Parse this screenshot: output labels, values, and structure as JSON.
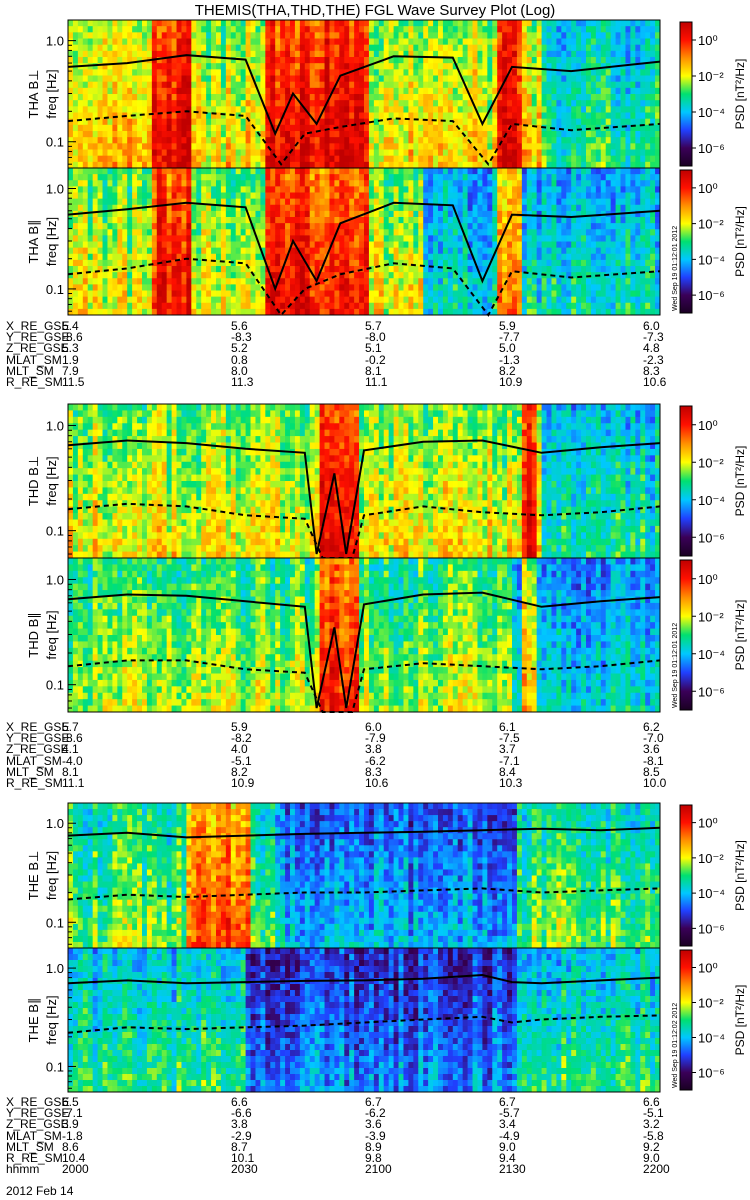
{
  "title": "THEMIS(THA,THD,THE) FGL Wave Survey Plot (Log)",
  "colors": {
    "colorbar_stops": [
      "#1a0022",
      "#3a0058",
      "#2040ff",
      "#00c8ff",
      "#00e070",
      "#ffff00",
      "#ff9000",
      "#ff1000",
      "#c00000"
    ],
    "line": "#000000"
  },
  "chart_data": [
    {
      "type": "heatmap",
      "panel": "THA B⊥",
      "ylabel": "THA B⊥",
      "ylabel2": "freq [Hz]",
      "yscale": "log",
      "ylim": [
        0.055,
        1.6
      ],
      "yticks": [
        "1.0",
        "0.1"
      ],
      "cbar_label": "PSD [nT²/Hz]",
      "cbar_ticks": [
        "10⁰",
        "10⁻²",
        "10⁻⁴",
        "10⁻⁶"
      ],
      "cbar_range": [
        -7,
        1
      ],
      "solid_line": [
        [
          0,
          0.55
        ],
        [
          0.1,
          0.6
        ],
        [
          0.2,
          0.72
        ],
        [
          0.3,
          0.65
        ],
        [
          0.35,
          0.12
        ],
        [
          0.38,
          0.3
        ],
        [
          0.42,
          0.15
        ],
        [
          0.46,
          0.45
        ],
        [
          0.55,
          0.7
        ],
        [
          0.65,
          0.68
        ],
        [
          0.7,
          0.15
        ],
        [
          0.75,
          0.55
        ],
        [
          0.85,
          0.5
        ],
        [
          1,
          0.62
        ]
      ],
      "dashed_line": [
        [
          0,
          0.16
        ],
        [
          0.1,
          0.18
        ],
        [
          0.2,
          0.2
        ],
        [
          0.3,
          0.18
        ],
        [
          0.36,
          0.06
        ],
        [
          0.4,
          0.12
        ],
        [
          0.46,
          0.14
        ],
        [
          0.55,
          0.17
        ],
        [
          0.65,
          0.16
        ],
        [
          0.71,
          0.06
        ],
        [
          0.75,
          0.15
        ],
        [
          0.85,
          0.13
        ],
        [
          1,
          0.15
        ]
      ]
    },
    {
      "type": "heatmap",
      "panel": "THA B∥",
      "ylabel": "THA B∥",
      "ylabel2": "freq [Hz]",
      "yscale": "log",
      "ylim": [
        0.055,
        1.6
      ],
      "yticks": [
        "1.0",
        "0.1"
      ],
      "cbar_label": "PSD [nT²/Hz]",
      "cbar_ticks": [
        "10⁰",
        "10⁻²",
        "10⁻⁴",
        "10⁻⁶"
      ],
      "cbar_range": [
        -7,
        1
      ],
      "stamp": "Wed Sep 19 01:12:01 2012",
      "solid_line": [
        [
          0,
          0.55
        ],
        [
          0.1,
          0.62
        ],
        [
          0.2,
          0.72
        ],
        [
          0.3,
          0.65
        ],
        [
          0.35,
          0.1
        ],
        [
          0.38,
          0.3
        ],
        [
          0.42,
          0.12
        ],
        [
          0.46,
          0.45
        ],
        [
          0.55,
          0.72
        ],
        [
          0.65,
          0.68
        ],
        [
          0.7,
          0.12
        ],
        [
          0.75,
          0.55
        ],
        [
          0.85,
          0.52
        ],
        [
          1,
          0.6
        ]
      ],
      "dashed_line": [
        [
          0,
          0.14
        ],
        [
          0.1,
          0.16
        ],
        [
          0.2,
          0.2
        ],
        [
          0.3,
          0.18
        ],
        [
          0.36,
          0.05
        ],
        [
          0.4,
          0.1
        ],
        [
          0.46,
          0.14
        ],
        [
          0.55,
          0.18
        ],
        [
          0.65,
          0.16
        ],
        [
          0.71,
          0.05
        ],
        [
          0.75,
          0.15
        ],
        [
          0.85,
          0.13
        ],
        [
          1,
          0.15
        ]
      ]
    },
    {
      "type": "heatmap",
      "panel": "THD B⊥",
      "ylabel": "THD B⊥",
      "ylabel2": "freq [Hz]",
      "yscale": "log",
      "ylim": [
        0.055,
        1.6
      ],
      "yticks": [
        "1.0",
        "0.1"
      ],
      "cbar_label": "PSD [nT²/Hz]",
      "cbar_ticks": [
        "10⁰",
        "10⁻²",
        "10⁻⁴",
        "10⁻⁶"
      ],
      "cbar_range": [
        -7,
        1
      ],
      "solid_line": [
        [
          0,
          0.65
        ],
        [
          0.1,
          0.72
        ],
        [
          0.2,
          0.68
        ],
        [
          0.3,
          0.6
        ],
        [
          0.4,
          0.55
        ],
        [
          0.42,
          0.06
        ],
        [
          0.45,
          0.35
        ],
        [
          0.47,
          0.06
        ],
        [
          0.5,
          0.58
        ],
        [
          0.6,
          0.7
        ],
        [
          0.7,
          0.72
        ],
        [
          0.8,
          0.55
        ],
        [
          0.9,
          0.62
        ],
        [
          1,
          0.68
        ]
      ],
      "dashed_line": [
        [
          0,
          0.16
        ],
        [
          0.1,
          0.18
        ],
        [
          0.2,
          0.17
        ],
        [
          0.3,
          0.14
        ],
        [
          0.4,
          0.13
        ],
        [
          0.43,
          0.05
        ],
        [
          0.48,
          0.05
        ],
        [
          0.5,
          0.14
        ],
        [
          0.6,
          0.17
        ],
        [
          0.7,
          0.15
        ],
        [
          0.8,
          0.14
        ],
        [
          0.9,
          0.15
        ],
        [
          1,
          0.17
        ]
      ]
    },
    {
      "type": "heatmap",
      "panel": "THD B∥",
      "ylabel": "THD B∥",
      "ylabel2": "freq [Hz]",
      "yscale": "log",
      "ylim": [
        0.055,
        1.6
      ],
      "yticks": [
        "1.0",
        "0.1"
      ],
      "cbar_label": "PSD [nT²/Hz]",
      "cbar_ticks": [
        "10⁰",
        "10⁻²",
        "10⁻⁴",
        "10⁻⁶"
      ],
      "cbar_range": [
        -7,
        1
      ],
      "stamp": "Wed Sep 19 01:12:01 2012",
      "solid_line": [
        [
          0,
          0.65
        ],
        [
          0.1,
          0.72
        ],
        [
          0.2,
          0.7
        ],
        [
          0.3,
          0.62
        ],
        [
          0.4,
          0.55
        ],
        [
          0.42,
          0.06
        ],
        [
          0.45,
          0.35
        ],
        [
          0.47,
          0.06
        ],
        [
          0.5,
          0.58
        ],
        [
          0.6,
          0.72
        ],
        [
          0.7,
          0.75
        ],
        [
          0.8,
          0.55
        ],
        [
          0.9,
          0.62
        ],
        [
          1,
          0.68
        ]
      ],
      "dashed_line": [
        [
          0,
          0.15
        ],
        [
          0.1,
          0.17
        ],
        [
          0.2,
          0.17
        ],
        [
          0.3,
          0.14
        ],
        [
          0.4,
          0.13
        ],
        [
          0.43,
          0.05
        ],
        [
          0.48,
          0.05
        ],
        [
          0.5,
          0.14
        ],
        [
          0.6,
          0.16
        ],
        [
          0.7,
          0.15
        ],
        [
          0.8,
          0.14
        ],
        [
          0.9,
          0.15
        ],
        [
          1,
          0.17
        ]
      ]
    },
    {
      "type": "heatmap",
      "panel": "THE B⊥",
      "ylabel": "THE B⊥",
      "ylabel2": "freq [Hz]",
      "yscale": "log",
      "ylim": [
        0.055,
        1.6
      ],
      "yticks": [
        "1.0",
        "0.1"
      ],
      "cbar_label": "PSD [nT²/Hz]",
      "cbar_ticks": [
        "10⁰",
        "10⁻²",
        "10⁻⁴",
        "10⁻⁶"
      ],
      "cbar_range": [
        -7,
        1
      ],
      "solid_line": [
        [
          0,
          0.75
        ],
        [
          0.1,
          0.8
        ],
        [
          0.2,
          0.72
        ],
        [
          0.3,
          0.75
        ],
        [
          0.4,
          0.78
        ],
        [
          0.5,
          0.8
        ],
        [
          0.6,
          0.82
        ],
        [
          0.7,
          0.85
        ],
        [
          0.8,
          0.88
        ],
        [
          0.9,
          0.85
        ],
        [
          1,
          0.9
        ]
      ],
      "dashed_line": [
        [
          0,
          0.17
        ],
        [
          0.1,
          0.19
        ],
        [
          0.2,
          0.18
        ],
        [
          0.3,
          0.19
        ],
        [
          0.4,
          0.2
        ],
        [
          0.5,
          0.2
        ],
        [
          0.6,
          0.21
        ],
        [
          0.7,
          0.22
        ],
        [
          0.8,
          0.2
        ],
        [
          0.9,
          0.21
        ],
        [
          1,
          0.22
        ]
      ]
    },
    {
      "type": "heatmap",
      "panel": "THE B∥",
      "ylabel": "THE B∥",
      "ylabel2": "freq [Hz]",
      "yscale": "log",
      "ylim": [
        0.055,
        1.6
      ],
      "yticks": [
        "1.0",
        "0.1"
      ],
      "cbar_label": "PSD [nT²/Hz]",
      "cbar_ticks": [
        "10⁰",
        "10⁻²",
        "10⁻⁴",
        "10⁻⁶"
      ],
      "cbar_range": [
        -7,
        1
      ],
      "stamp": "Wed Sep 19 01:12:02 2012",
      "solid_line": [
        [
          0,
          0.7
        ],
        [
          0.1,
          0.75
        ],
        [
          0.2,
          0.7
        ],
        [
          0.3,
          0.72
        ],
        [
          0.4,
          0.74
        ],
        [
          0.5,
          0.75
        ],
        [
          0.6,
          0.78
        ],
        [
          0.7,
          0.85
        ],
        [
          0.75,
          0.72
        ],
        [
          0.8,
          0.7
        ],
        [
          0.9,
          0.75
        ],
        [
          1,
          0.8
        ]
      ],
      "dashed_line": [
        [
          0,
          0.22
        ],
        [
          0.1,
          0.25
        ],
        [
          0.2,
          0.24
        ],
        [
          0.3,
          0.25
        ],
        [
          0.4,
          0.26
        ],
        [
          0.5,
          0.28
        ],
        [
          0.6,
          0.3
        ],
        [
          0.7,
          0.32
        ],
        [
          0.75,
          0.28
        ],
        [
          0.8,
          0.3
        ],
        [
          0.9,
          0.32
        ],
        [
          1,
          0.33
        ]
      ]
    }
  ],
  "tables": [
    {
      "rows": [
        {
          "label": "X_RE_GSE",
          "values": [
            "5.4",
            "5.6",
            "5.7",
            "5.9",
            "6.0"
          ]
        },
        {
          "label": "Y_RE_GSE",
          "values": [
            "-8.6",
            "-8.3",
            "-8.0",
            "-7.7",
            "-7.3"
          ]
        },
        {
          "label": "Z_RE_GSE",
          "values": [
            "5.3",
            "5.2",
            "5.1",
            "5.0",
            "4.8"
          ]
        },
        {
          "label": "MLAT_SM",
          "values": [
            "1.9",
            "0.8",
            "-0.2",
            "-1.3",
            "-2.3"
          ]
        },
        {
          "label": "MLT_SM",
          "values": [
            "7.9",
            "8.0",
            "8.1",
            "8.2",
            "8.3"
          ]
        },
        {
          "label": "R_RE_SM",
          "values": [
            "11.5",
            "11.3",
            "11.1",
            "10.9",
            "10.6"
          ]
        }
      ]
    },
    {
      "rows": [
        {
          "label": "X_RE_GSE",
          "values": [
            "5.7",
            "5.9",
            "6.0",
            "6.1",
            "6.2"
          ]
        },
        {
          "label": "Y_RE_GSE",
          "values": [
            "-8.6",
            "-8.2",
            "-7.9",
            "-7.5",
            "-7.0"
          ]
        },
        {
          "label": "Z_RE_GSE",
          "values": [
            "4.1",
            "4.0",
            "3.8",
            "3.7",
            "3.6"
          ]
        },
        {
          "label": "MLAT_SM",
          "values": [
            "-4.0",
            "-5.1",
            "-6.2",
            "-7.1",
            "-8.1"
          ]
        },
        {
          "label": "MLT_SM",
          "values": [
            "8.1",
            "8.2",
            "8.3",
            "8.4",
            "8.5"
          ]
        },
        {
          "label": "R_RE_SM",
          "values": [
            "11.1",
            "10.9",
            "10.6",
            "10.3",
            "10.0"
          ]
        }
      ]
    },
    {
      "rows": [
        {
          "label": "X_RE_GSE",
          "values": [
            "6.5",
            "6.6",
            "6.7",
            "6.7",
            "6.6"
          ]
        },
        {
          "label": "Y_RE_GSE",
          "values": [
            "-7.1",
            "-6.6",
            "-6.2",
            "-5.7",
            "-5.1"
          ]
        },
        {
          "label": "Z_RE_GSE",
          "values": [
            "3.9",
            "3.8",
            "3.6",
            "3.4",
            "3.2"
          ]
        },
        {
          "label": "MLAT_SM",
          "values": [
            "-1.8",
            "-2.9",
            "-3.9",
            "-4.9",
            "-5.8"
          ]
        },
        {
          "label": "MLT_SM",
          "values": [
            "8.6",
            "8.7",
            "8.9",
            "9.0",
            "9.2"
          ]
        },
        {
          "label": "R_RE_SM",
          "values": [
            "10.4",
            "10.1",
            "9.8",
            "9.4",
            "9.0"
          ]
        },
        {
          "label": "hhmm",
          "values": [
            "2000",
            "2030",
            "2100",
            "2130",
            "2200"
          ]
        }
      ]
    }
  ],
  "date": "2012 Feb 14"
}
